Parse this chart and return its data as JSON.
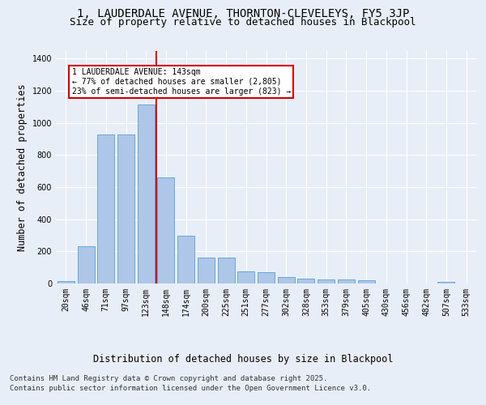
{
  "title_line1": "1, LAUDERDALE AVENUE, THORNTON-CLEVELEYS, FY5 3JP",
  "title_line2": "Size of property relative to detached houses in Blackpool",
  "xlabel": "Distribution of detached houses by size in Blackpool",
  "ylabel": "Number of detached properties",
  "categories": [
    "20sqm",
    "46sqm",
    "71sqm",
    "97sqm",
    "123sqm",
    "148sqm",
    "174sqm",
    "200sqm",
    "225sqm",
    "251sqm",
    "277sqm",
    "302sqm",
    "328sqm",
    "353sqm",
    "379sqm",
    "405sqm",
    "430sqm",
    "456sqm",
    "482sqm",
    "507sqm",
    "533sqm"
  ],
  "values": [
    15,
    230,
    930,
    930,
    1115,
    660,
    300,
    160,
    160,
    75,
    70,
    40,
    30,
    25,
    25,
    20,
    0,
    0,
    0,
    10,
    0
  ],
  "bar_color": "#aec6e8",
  "bar_edge_color": "#5a9fd4",
  "vline_bin": 5,
  "vline_color": "#cc0000",
  "annotation_text": "1 LAUDERDALE AVENUE: 143sqm\n← 77% of detached houses are smaller (2,805)\n23% of semi-detached houses are larger (823) →",
  "annotation_box_color": "#cc0000",
  "ylim": [
    0,
    1450
  ],
  "yticks": [
    0,
    200,
    400,
    600,
    800,
    1000,
    1200,
    1400
  ],
  "footer_line1": "Contains HM Land Registry data © Crown copyright and database right 2025.",
  "footer_line2": "Contains public sector information licensed under the Open Government Licence v3.0.",
  "bg_color": "#e8eef8",
  "plot_bg_color": "#e8eef8",
  "title_fontsize": 10,
  "subtitle_fontsize": 9,
  "axis_label_fontsize": 8.5,
  "tick_fontsize": 7,
  "footer_fontsize": 6.5
}
